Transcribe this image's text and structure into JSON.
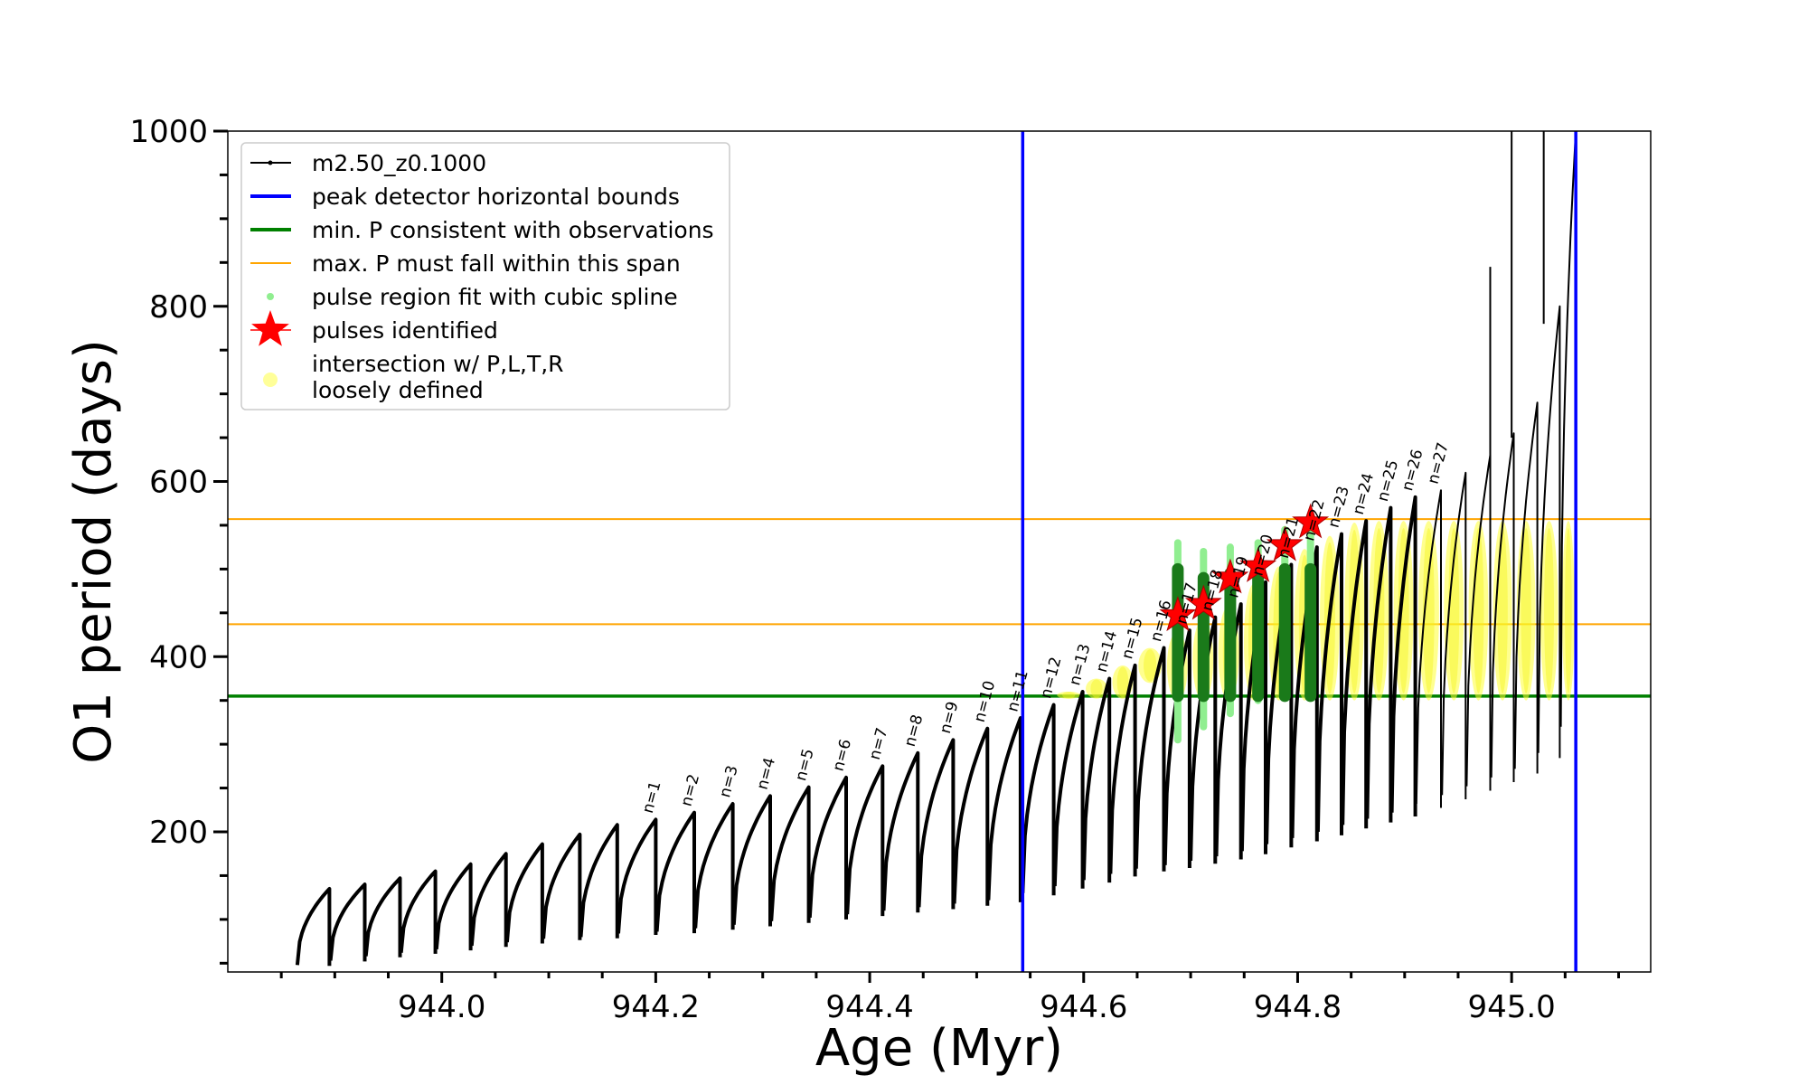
{
  "chart_data": {
    "type": "line",
    "xlabel": "Age (Myr)",
    "ylabel": "O1 period (days)",
    "xlim": [
      943.8,
      945.13
    ],
    "ylim": [
      40,
      1000
    ],
    "x_ticks": [
      944.0,
      944.2,
      944.4,
      944.6,
      944.8,
      945.0
    ],
    "x_tick_labels": [
      "944.0",
      "944.2",
      "944.4",
      "944.6",
      "944.8",
      "945.0"
    ],
    "y_ticks": [
      200,
      400,
      600,
      800,
      1000
    ],
    "y_tick_labels": [
      "200",
      "400",
      "600",
      "800",
      "1000"
    ],
    "legend_position": "top-left",
    "legend": [
      {
        "label": "m2.50_z0.1000",
        "color": "#000000",
        "marker": "line-dot"
      },
      {
        "label": "peak detector horizontal bounds",
        "color": "#0000ff",
        "marker": "line"
      },
      {
        "label": "min. P consistent with observations",
        "color": "#008000",
        "marker": "line"
      },
      {
        "label": "max. P must fall within this span",
        "color": "#ffa500",
        "marker": "thin-line"
      },
      {
        "label": "pulse region fit with cubic spline",
        "color": "#90ee90",
        "marker": "dot"
      },
      {
        "label": "pulses identified",
        "color": "#ff0000",
        "marker": "star"
      },
      {
        "label": "intersection w/ P,L,T,R\nloosely defined",
        "color": "#ffff99",
        "marker": "circle"
      }
    ],
    "vertical_lines": [
      {
        "name": "peak detector horizontal bounds",
        "x": 944.543,
        "color": "#0000ff"
      },
      {
        "name": "peak detector horizontal bounds",
        "x": 945.06,
        "color": "#0000ff"
      }
    ],
    "horizontal_lines": [
      {
        "name": "min. P consistent with observations",
        "y": 355,
        "color": "#008000"
      },
      {
        "name": "max. P must fall within this span",
        "y": 437,
        "color": "#ffa500"
      },
      {
        "name": "max. P must fall within this span",
        "y": 557,
        "color": "#ffa500"
      }
    ],
    "series": [
      {
        "name": "m2.50_z0.1000",
        "pulses": [
          {
            "start": 943.865,
            "end": 943.895,
            "min": 48,
            "max": 135
          },
          {
            "start": 943.896,
            "end": 943.928,
            "min": 53,
            "max": 140
          },
          {
            "start": 943.929,
            "end": 943.961,
            "min": 58,
            "max": 147
          },
          {
            "start": 943.962,
            "end": 943.994,
            "min": 62,
            "max": 155
          },
          {
            "start": 943.995,
            "end": 944.027,
            "min": 66,
            "max": 163
          },
          {
            "start": 944.028,
            "end": 944.06,
            "min": 70,
            "max": 175
          },
          {
            "start": 944.061,
            "end": 944.094,
            "min": 74,
            "max": 186
          },
          {
            "start": 944.095,
            "end": 944.129,
            "min": 78,
            "max": 197
          },
          {
            "start": 944.13,
            "end": 944.164,
            "min": 80,
            "max": 208
          },
          {
            "start": 944.165,
            "end": 944.2,
            "min": 84,
            "max": 214,
            "label": "n=1"
          },
          {
            "start": 944.201,
            "end": 944.236,
            "min": 86,
            "max": 222,
            "label": "n=2"
          },
          {
            "start": 944.237,
            "end": 944.272,
            "min": 90,
            "max": 232,
            "label": "n=3"
          },
          {
            "start": 944.273,
            "end": 944.307,
            "min": 94,
            "max": 241,
            "label": "n=4"
          },
          {
            "start": 944.308,
            "end": 944.343,
            "min": 98,
            "max": 251,
            "label": "n=5"
          },
          {
            "start": 944.344,
            "end": 944.378,
            "min": 102,
            "max": 262,
            "label": "n=6"
          },
          {
            "start": 944.379,
            "end": 944.412,
            "min": 106,
            "max": 275,
            "label": "n=7"
          },
          {
            "start": 944.413,
            "end": 944.445,
            "min": 110,
            "max": 290,
            "label": "n=8"
          },
          {
            "start": 944.446,
            "end": 944.478,
            "min": 114,
            "max": 305,
            "label": "n=9"
          },
          {
            "start": 944.479,
            "end": 944.51,
            "min": 118,
            "max": 318,
            "label": "n=10"
          },
          {
            "start": 944.511,
            "end": 944.541,
            "min": 122,
            "max": 330,
            "label": "n=11"
          },
          {
            "start": 944.543,
            "end": 944.572,
            "min": 130,
            "max": 345,
            "label": "n=12"
          },
          {
            "start": 944.573,
            "end": 944.599,
            "min": 138,
            "max": 360,
            "label": "n=13"
          },
          {
            "start": 944.6,
            "end": 944.624,
            "min": 145,
            "max": 375,
            "label": "n=14"
          },
          {
            "start": 944.625,
            "end": 944.648,
            "min": 152,
            "max": 390,
            "label": "n=15"
          },
          {
            "start": 944.649,
            "end": 944.675,
            "min": 158,
            "max": 410,
            "label": "n=16"
          },
          {
            "start": 944.676,
            "end": 944.699,
            "min": 162,
            "max": 430,
            "label": "n=17"
          },
          {
            "start": 944.7,
            "end": 944.723,
            "min": 167,
            "max": 445,
            "label": "n=18"
          },
          {
            "start": 944.724,
            "end": 944.747,
            "min": 172,
            "max": 460,
            "label": "n=19"
          },
          {
            "start": 944.748,
            "end": 944.77,
            "min": 178,
            "max": 485,
            "label": "n=20"
          },
          {
            "start": 944.771,
            "end": 944.794,
            "min": 186,
            "max": 505,
            "label": "n=21"
          },
          {
            "start": 944.795,
            "end": 944.818,
            "min": 193,
            "max": 525,
            "label": "n=22"
          },
          {
            "start": 944.819,
            "end": 944.841,
            "min": 200,
            "max": 540,
            "label": "n=23"
          },
          {
            "start": 944.842,
            "end": 944.864,
            "min": 208,
            "max": 555,
            "label": "n=24"
          },
          {
            "start": 944.865,
            "end": 944.887,
            "min": 215,
            "max": 570,
            "label": "n=25"
          },
          {
            "start": 944.888,
            "end": 944.91,
            "min": 222,
            "max": 582,
            "label": "n=26"
          },
          {
            "start": 944.911,
            "end": 944.934,
            "min": 232,
            "max": 590,
            "label": "n=27"
          },
          {
            "start": 944.935,
            "end": 944.957,
            "min": 242,
            "max": 610
          },
          {
            "start": 944.958,
            "end": 944.98,
            "min": 252,
            "max": 630
          },
          {
            "start": 944.981,
            "end": 945.002,
            "min": 262,
            "max": 655
          },
          {
            "start": 945.003,
            "end": 945.024,
            "min": 272,
            "max": 690
          },
          {
            "start": 945.025,
            "end": 945.045,
            "min": 290,
            "max": 800
          },
          {
            "start": 945.046,
            "end": 945.06,
            "min": 320,
            "max": 1000
          }
        ]
      }
    ],
    "pulses_identified": [
      {
        "x": 944.688,
        "y": 447
      },
      {
        "x": 944.712,
        "y": 460
      },
      {
        "x": 944.737,
        "y": 490
      },
      {
        "x": 944.763,
        "y": 503
      },
      {
        "x": 944.788,
        "y": 527
      },
      {
        "x": 944.812,
        "y": 553
      }
    ],
    "spline_fit_regions": [
      {
        "x": 944.688,
        "y_range": [
          305,
          530
        ]
      },
      {
        "x": 944.712,
        "y_range": [
          320,
          520
        ]
      },
      {
        "x": 944.737,
        "y_range": [
          335,
          525
        ]
      },
      {
        "x": 944.763,
        "y_range": [
          350,
          530
        ]
      },
      {
        "x": 944.788,
        "y_range": [
          355,
          545
        ]
      },
      {
        "x": 944.812,
        "y_range": [
          355,
          560
        ]
      }
    ]
  }
}
